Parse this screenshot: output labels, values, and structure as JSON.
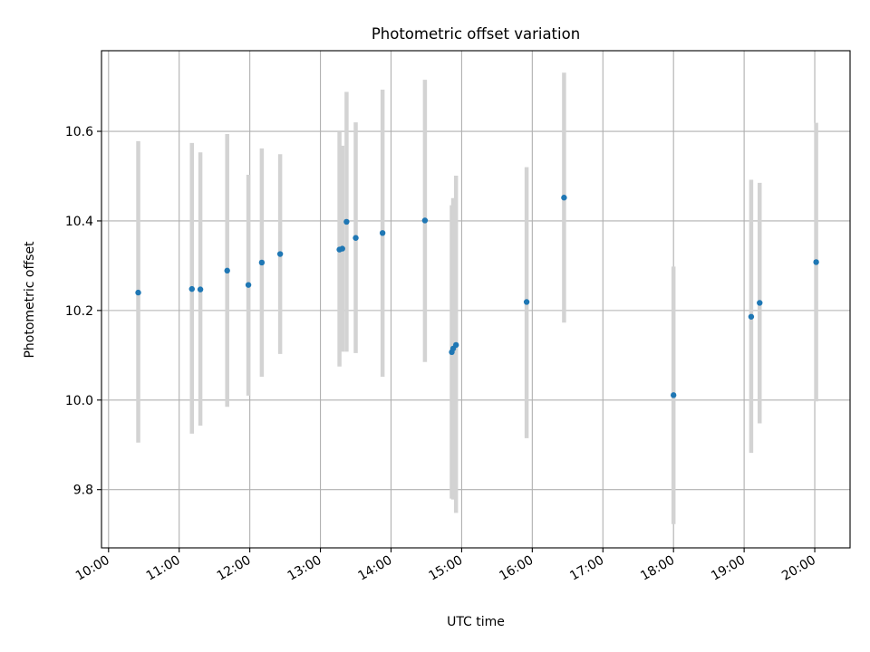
{
  "chart_data": {
    "type": "scatter",
    "title": "Photometric offset variation",
    "xlabel": "UTC time",
    "ylabel": "Photometric offset",
    "x_unit": "hours UTC",
    "xlim": [
      9.9,
      20.5
    ],
    "ylim": [
      9.67,
      10.78
    ],
    "grid": true,
    "x_tick_values": [
      10,
      11,
      12,
      13,
      14,
      15,
      16,
      17,
      18,
      19,
      20
    ],
    "x_tick_labels": [
      "10:00",
      "11:00",
      "12:00",
      "13:00",
      "14:00",
      "15:00",
      "16:00",
      "17:00",
      "18:00",
      "19:00",
      "20:00"
    ],
    "y_tick_values": [
      9.8,
      10.0,
      10.2,
      10.4,
      10.6
    ],
    "y_tick_labels": [
      "9.8",
      "10.0",
      "10.2",
      "10.4",
      "10.6"
    ],
    "colors": {
      "points": "#1f77b4",
      "error_bars": "#d3d3d3",
      "grid": "#b0b0b0"
    },
    "series": [
      {
        "x": [
          10.42,
          11.18,
          11.3,
          11.68,
          11.98,
          12.17,
          12.43,
          13.27,
          13.31,
          13.37,
          13.5,
          13.88,
          14.48,
          14.86,
          14.88,
          14.92,
          15.92,
          16.45,
          18.0,
          19.1,
          19.22,
          20.02
        ],
        "y": [
          10.24,
          10.248,
          10.247,
          10.289,
          10.257,
          10.307,
          10.326,
          10.336,
          10.338,
          10.398,
          10.362,
          10.373,
          10.401,
          10.107,
          10.115,
          10.123,
          10.219,
          10.452,
          10.011,
          10.186,
          10.217,
          10.308
        ],
        "y_low": [
          9.905,
          9.925,
          9.943,
          9.985,
          10.01,
          10.052,
          10.103,
          10.075,
          10.108,
          10.108,
          10.105,
          10.052,
          10.085,
          9.78,
          9.778,
          9.748,
          9.915,
          10.173,
          9.723,
          9.882,
          9.948,
          9.997
        ],
        "y_high": [
          10.578,
          10.574,
          10.553,
          10.594,
          10.503,
          10.562,
          10.549,
          10.598,
          10.568,
          10.688,
          10.62,
          10.693,
          10.715,
          10.435,
          10.451,
          10.501,
          10.52,
          10.731,
          10.298,
          10.492,
          10.485,
          10.619
        ]
      }
    ]
  }
}
